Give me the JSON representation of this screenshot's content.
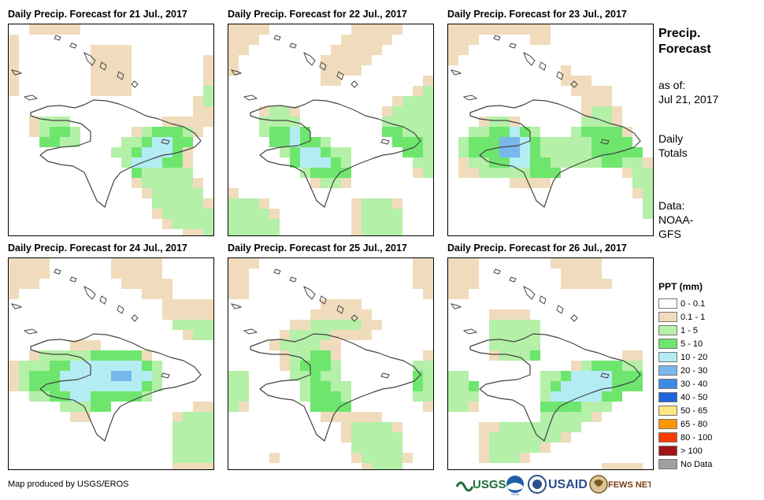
{
  "panels": [
    {
      "title": "Daily Precip. Forecast for 21 Jul., 2017"
    },
    {
      "title": "Daily Precip. Forecast for 22 Jul., 2017"
    },
    {
      "title": "Daily Precip. Forecast for 23 Jul., 2017"
    },
    {
      "title": "Daily Precip. Forecast for 24 Jul., 2017"
    },
    {
      "title": "Daily Precip. Forecast for 25 Jul., 2017"
    },
    {
      "title": "Daily Precip. Forecast for 26 Jul., 2017"
    }
  ],
  "sidebar": {
    "title_line1": "Precip.",
    "title_line2": "Forecast",
    "asof_label": "as of:",
    "asof_date": "Jul 21, 2017",
    "totals_line1": "Daily",
    "totals_line2": "Totals",
    "data_line1": "Data:",
    "data_line2": "NOAA-",
    "data_line3": "GFS"
  },
  "legend": {
    "heading": "PPT (mm)",
    "items": [
      {
        "label": "0 - 0.1",
        "color": "#ffffff"
      },
      {
        "label": "0.1 - 1",
        "color": "#f0dcbc"
      },
      {
        "label": "1 - 5",
        "color": "#b4f0a8"
      },
      {
        "label": "5 - 10",
        "color": "#6ee66e"
      },
      {
        "label": "10 - 20",
        "color": "#b4ecf4"
      },
      {
        "label": "20 - 30",
        "color": "#78b8ec"
      },
      {
        "label": "30 - 40",
        "color": "#3c8ce6"
      },
      {
        "label": "40 - 50",
        "color": "#1e64dc"
      },
      {
        "label": "50 - 65",
        "color": "#fae682"
      },
      {
        "label": "65 - 80",
        "color": "#fa9600"
      },
      {
        "label": "80 - 100",
        "color": "#fa3c00"
      },
      {
        "label": "> 100",
        "color": "#a01414"
      },
      {
        "label": "No Data",
        "color": "#a0a0a0"
      }
    ]
  },
  "credit": "Map produced by USGS/EROS",
  "logos": [
    "USGS",
    "NOAA",
    "USAID",
    "FEWS NET"
  ]
}
